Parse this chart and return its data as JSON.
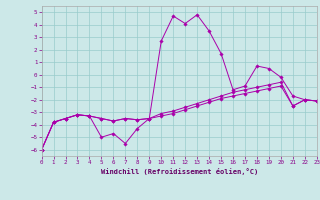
{
  "xlabel": "Windchill (Refroidissement éolien,°C)",
  "xlim": [
    0,
    23
  ],
  "ylim": [
    -6.5,
    5.5
  ],
  "yticks": [
    -6,
    -5,
    -4,
    -3,
    -2,
    -1,
    0,
    1,
    2,
    3,
    4,
    5
  ],
  "xticks": [
    0,
    1,
    2,
    3,
    4,
    5,
    6,
    7,
    8,
    9,
    10,
    11,
    12,
    13,
    14,
    15,
    16,
    17,
    18,
    19,
    20,
    21,
    22,
    23
  ],
  "bg_color": "#cce8e8",
  "line_color": "#aa00aa",
  "grid_color": "#99cccc",
  "line1_x": [
    0,
    1,
    2,
    3,
    4,
    5,
    6,
    7,
    8,
    9,
    10,
    11,
    12,
    13,
    14,
    15,
    16,
    17,
    18,
    19,
    20,
    21,
    22,
    23
  ],
  "line1_y": [
    -6.0,
    -3.8,
    -3.5,
    -3.2,
    -3.3,
    -5.0,
    -4.7,
    -5.5,
    -4.3,
    -3.5,
    2.7,
    4.7,
    4.1,
    4.8,
    3.5,
    1.7,
    -1.2,
    -0.9,
    0.7,
    0.5,
    -0.2,
    -1.7,
    -2.0,
    -2.1
  ],
  "line2_x": [
    0,
    1,
    2,
    3,
    4,
    5,
    6,
    7,
    8,
    9,
    10,
    11,
    12,
    13,
    14,
    15,
    16,
    17,
    18,
    19,
    20,
    21,
    22,
    23
  ],
  "line2_y": [
    -6.0,
    -3.8,
    -3.5,
    -3.2,
    -3.3,
    -3.5,
    -3.7,
    -3.5,
    -3.6,
    -3.5,
    -3.3,
    -3.1,
    -2.8,
    -2.5,
    -2.2,
    -1.9,
    -1.7,
    -1.5,
    -1.3,
    -1.1,
    -0.9,
    -2.5,
    -2.0,
    -2.1
  ],
  "line3_x": [
    0,
    1,
    2,
    3,
    4,
    5,
    6,
    7,
    8,
    9,
    10,
    11,
    12,
    13,
    14,
    15,
    16,
    17,
    18,
    19,
    20,
    21,
    22,
    23
  ],
  "line3_y": [
    -6.0,
    -3.8,
    -3.5,
    -3.2,
    -3.3,
    -3.5,
    -3.7,
    -3.5,
    -3.6,
    -3.5,
    -3.1,
    -2.9,
    -2.6,
    -2.3,
    -2.0,
    -1.7,
    -1.4,
    -1.2,
    -1.0,
    -0.8,
    -0.6,
    -2.5,
    -2.0,
    -2.1
  ]
}
